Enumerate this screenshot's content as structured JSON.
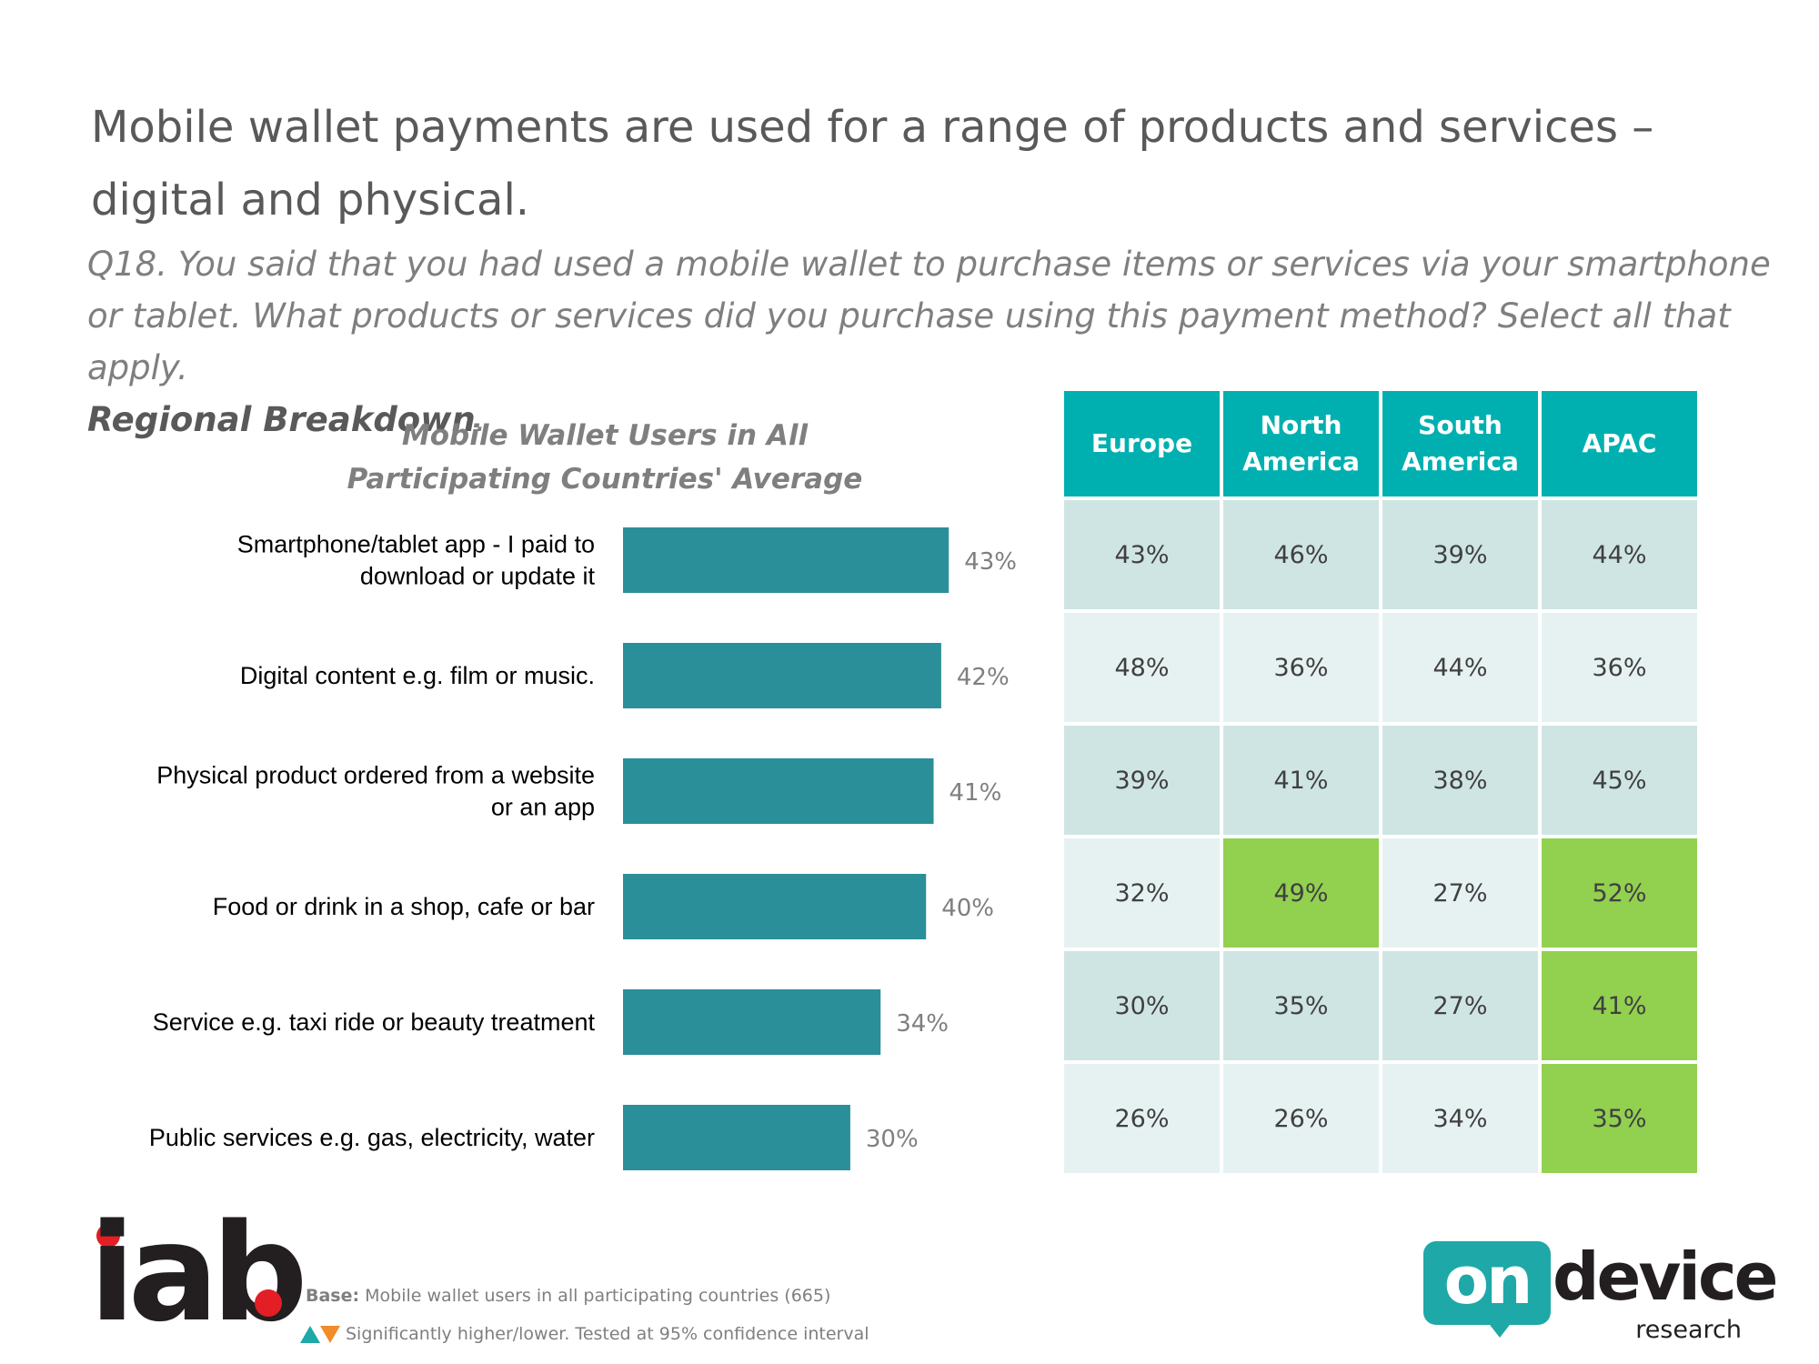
{
  "title": "Mobile wallet payments are used for a range of products and services – digital and physical.",
  "question": {
    "text": "Q18. You said that you had used a mobile wallet to purchase items or services via your smartphone or tablet. What products or services did you purchase using this payment method? Select all that apply.",
    "bold": "Regional Breakdown",
    "tail": "."
  },
  "colors": {
    "bar": "#2a8f99",
    "header": "#00b0b0",
    "row_dark": "#cfe5e4",
    "row_light": "#e6f2f1",
    "significant_high": "#92d050",
    "triangle_up": "#1fa8a8",
    "triangle_down": "#f28c28"
  },
  "chart_data": {
    "type": "bar",
    "orientation": "horizontal",
    "title": "Mobile Wallet Users in All Participating Countries' Average",
    "categories": [
      "Smartphone/tablet app - I paid to download or update it",
      "Digital content e.g. film or music.",
      "Physical product ordered from a website or an app",
      "Food or drink in a shop, cafe or bar",
      "Service e.g. taxi ride or beauty treatment",
      "Public services e.g. gas, electricity, water"
    ],
    "category_lines": [
      [
        "Smartphone/tablet app - I paid to",
        "download or update it"
      ],
      [
        "Digital content e.g. film or music."
      ],
      [
        "Physical product ordered from a website",
        "or an app"
      ],
      [
        "Food or drink in a shop, cafe or bar"
      ],
      [
        "Service e.g. taxi ride or beauty treatment"
      ],
      [
        "Public services e.g. gas, electricity, water"
      ]
    ],
    "values": [
      43,
      42,
      41,
      40,
      34,
      30
    ],
    "value_labels": [
      "43%",
      "42%",
      "41%",
      "40%",
      "34%",
      "30%"
    ],
    "grid": false,
    "legend": "none"
  },
  "regional_table": {
    "headers": [
      "Europe",
      "North America",
      "South America",
      "APAC"
    ],
    "rows": [
      {
        "values": [
          "43%",
          "46%",
          "39%",
          "44%"
        ],
        "significant_high": [
          false,
          false,
          false,
          false
        ]
      },
      {
        "values": [
          "48%",
          "36%",
          "44%",
          "36%"
        ],
        "significant_high": [
          false,
          false,
          false,
          false
        ]
      },
      {
        "values": [
          "39%",
          "41%",
          "38%",
          "45%"
        ],
        "significant_high": [
          false,
          false,
          false,
          false
        ]
      },
      {
        "values": [
          "32%",
          "49%",
          "27%",
          "52%"
        ],
        "significant_high": [
          false,
          true,
          false,
          true
        ]
      },
      {
        "values": [
          "30%",
          "35%",
          "27%",
          "41%"
        ],
        "significant_high": [
          false,
          false,
          false,
          true
        ]
      },
      {
        "values": [
          "26%",
          "26%",
          "34%",
          "35%"
        ],
        "significant_high": [
          false,
          false,
          false,
          true
        ]
      }
    ]
  },
  "footer": {
    "base_label": "Base:",
    "base_text": "Mobile wallet users in all participating countries (665)",
    "significance_text": "Significantly higher/lower. Tested at 95% confidence interval"
  },
  "logos": {
    "iab": "iab",
    "ondevice_badge": "on",
    "ondevice_word": "device",
    "ondevice_sub": "research"
  }
}
